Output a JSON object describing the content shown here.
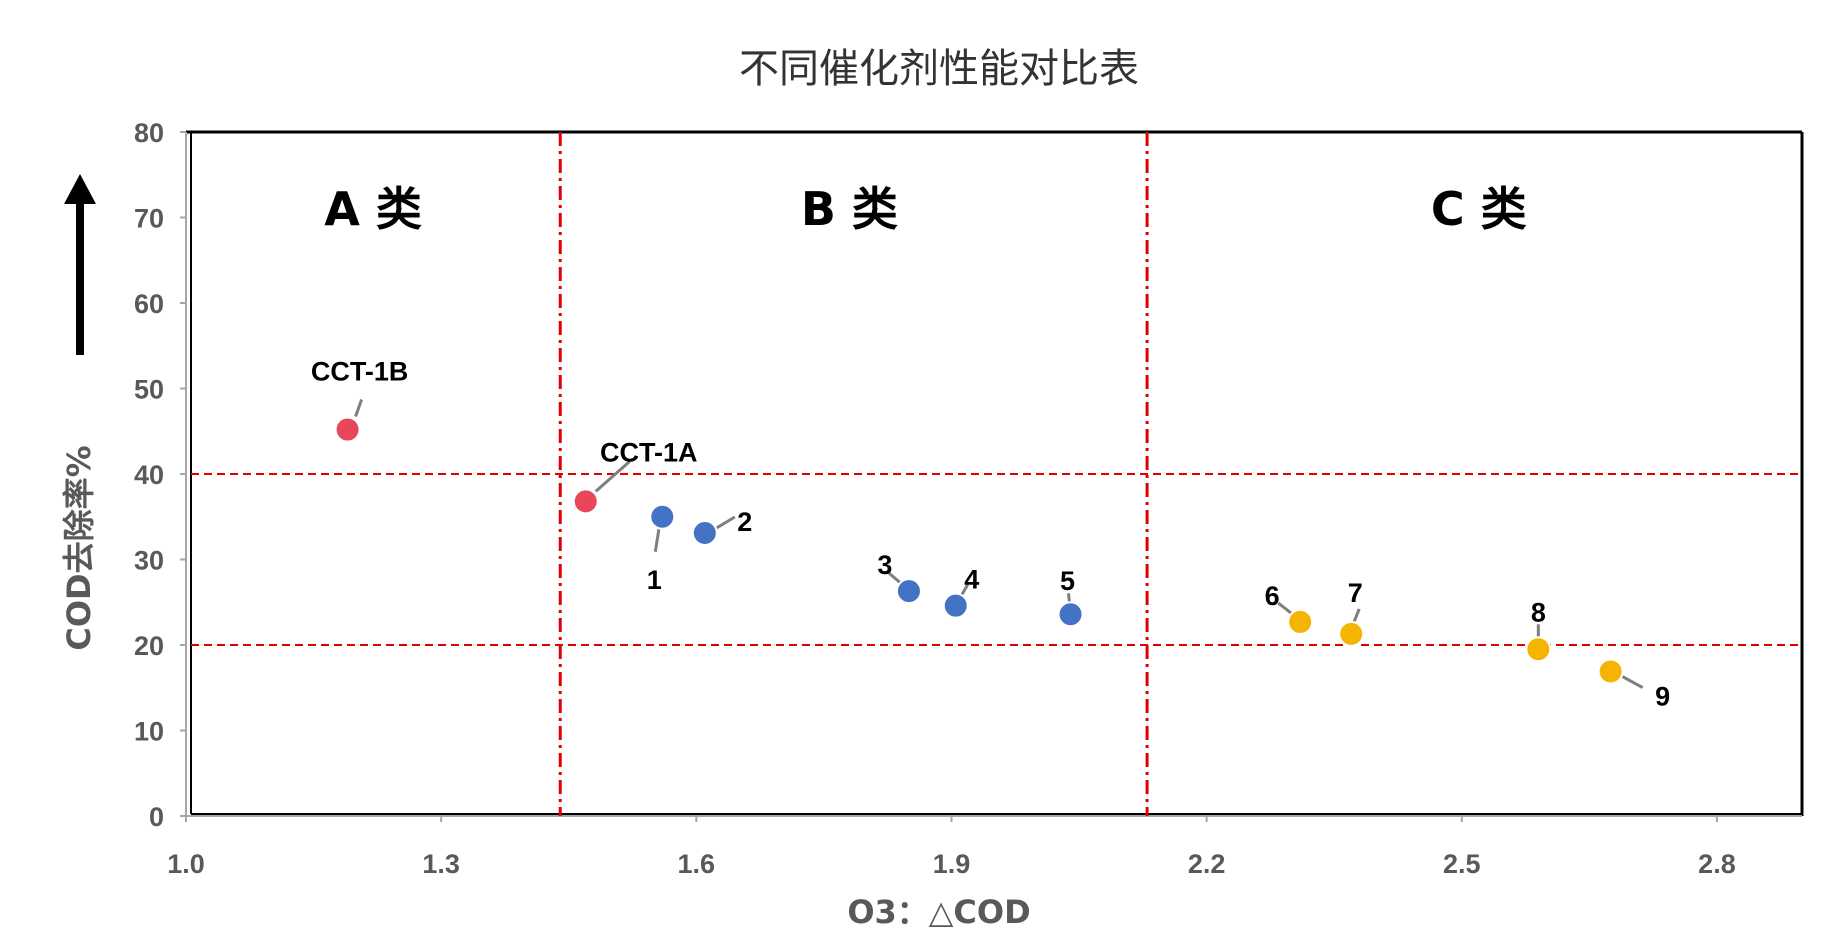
{
  "chart_data": {
    "type": "scatter",
    "title": "不同催化剂性能对比表",
    "xlabel": "O3：△COD",
    "ylabel": "COD去除率%",
    "xlim": [
      1.0,
      2.9
    ],
    "ylim": [
      0,
      80
    ],
    "x_ticks": [
      1.0,
      1.3,
      1.6,
      1.9,
      2.2,
      2.5,
      2.8
    ],
    "x_tick_labels": [
      "1.0",
      "1.3",
      "1.6",
      "1.9",
      "2.2",
      "2.5",
      "2.8"
    ],
    "y_ticks": [
      0,
      10,
      20,
      30,
      40,
      50,
      60,
      70,
      80
    ],
    "y_tick_labels": [
      "0",
      "10",
      "20",
      "30",
      "40",
      "50",
      "60",
      "70",
      "80"
    ],
    "grid": false,
    "dividers": {
      "vertical_x": [
        1.44,
        2.13
      ],
      "horizontal_y": [
        40,
        20
      ],
      "color": "#e00000"
    },
    "regions": [
      {
        "label": "A 类",
        "x": 1.22,
        "y": 71
      },
      {
        "label": "B 类",
        "x": 1.78,
        "y": 71
      },
      {
        "label": "C 类",
        "x": 2.52,
        "y": 71
      }
    ],
    "series": [
      {
        "color": "#e8475a",
        "points": [
          {
            "label": "CCT-1B",
            "x": 1.19,
            "y": 45.2
          },
          {
            "label": "CCT-1A",
            "x": 1.47,
            "y": 36.8
          }
        ]
      },
      {
        "color": "#4472c4",
        "points": [
          {
            "label": "1",
            "x": 1.56,
            "y": 35.0
          },
          {
            "label": "2",
            "x": 1.61,
            "y": 33.1
          },
          {
            "label": "3",
            "x": 1.85,
            "y": 26.3
          },
          {
            "label": "4",
            "x": 1.905,
            "y": 24.6
          },
          {
            "label": "5",
            "x": 2.04,
            "y": 23.6
          }
        ]
      },
      {
        "color": "#f4b400",
        "points": [
          {
            "label": "6",
            "x": 2.31,
            "y": 22.7
          },
          {
            "label": "7",
            "x": 2.37,
            "y": 21.3
          },
          {
            "label": "8",
            "x": 2.59,
            "y": 19.5
          },
          {
            "label": "9",
            "x": 2.675,
            "y": 16.9
          }
        ]
      }
    ]
  }
}
